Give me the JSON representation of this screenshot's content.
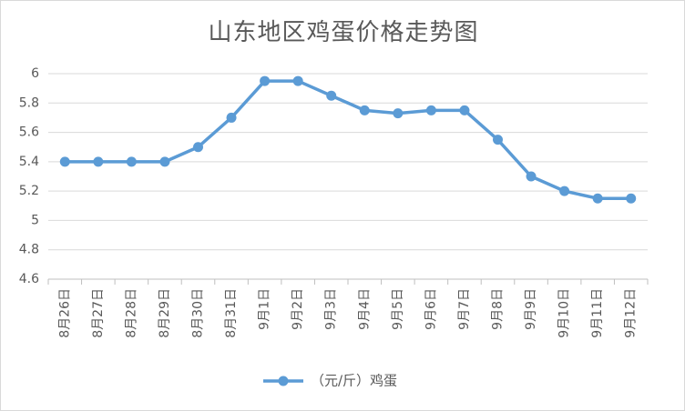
{
  "chart_data": {
    "type": "line",
    "title": "山东地区鸡蛋价格走势图",
    "xlabel": "",
    "ylabel": "",
    "categories": [
      "8月26日",
      "8月27日",
      "8月28日",
      "8月29日",
      "8月30日",
      "8月31日",
      "9月1日",
      "9月2日",
      "9月3日",
      "9月4日",
      "9月5日",
      "9月6日",
      "9月7日",
      "9月8日",
      "9月9日",
      "9月10日",
      "9月11日",
      "9月12日"
    ],
    "series": [
      {
        "name": "（元/斤）鸡蛋",
        "color": "#5b9bd5",
        "values": [
          5.4,
          5.4,
          5.4,
          5.4,
          5.5,
          5.7,
          5.95,
          5.95,
          5.85,
          5.75,
          5.73,
          5.75,
          5.75,
          5.55,
          5.3,
          5.2,
          5.15,
          5.15
        ]
      }
    ],
    "ylim": [
      4.6,
      6
    ],
    "yticks": [
      4.6,
      4.8,
      5,
      5.2,
      5.4,
      5.6,
      5.8,
      6
    ],
    "grid": true,
    "legend_position": "bottom"
  }
}
